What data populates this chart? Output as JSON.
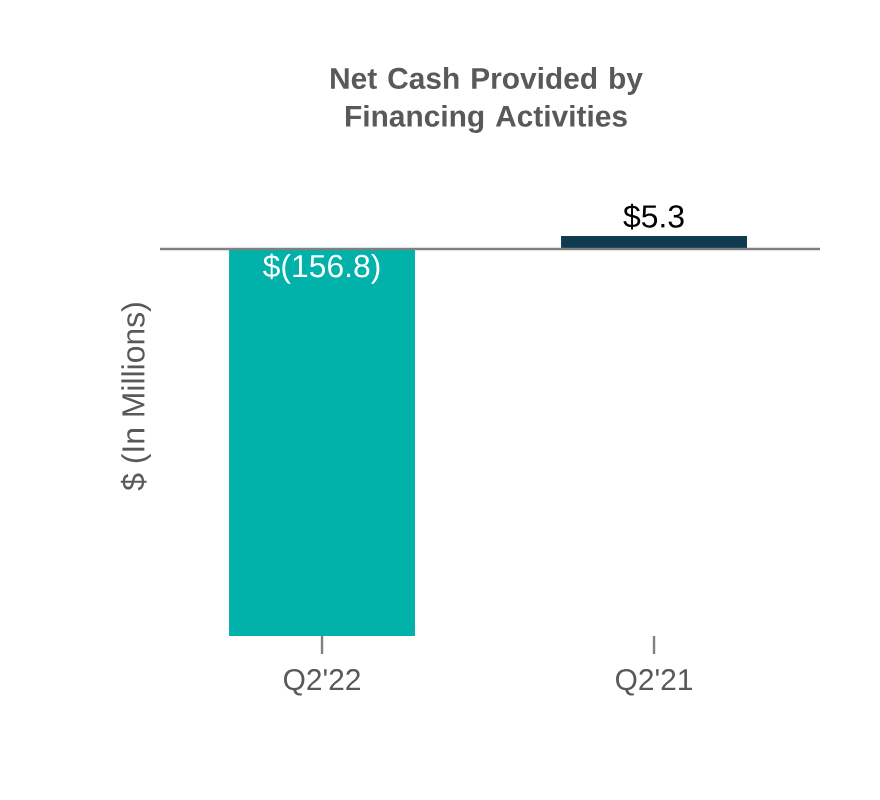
{
  "chart_data": {
    "type": "bar",
    "title": "Net Cash Provided by Financing Activities",
    "ylabel": "$ (In Millions)",
    "categories": [
      "Q2'22",
      "Q2'21"
    ],
    "values": [
      -156.8,
      5.3
    ],
    "colors": [
      "#00b2a9",
      "#0f3a4f"
    ],
    "value_labels": [
      "$(156.8)",
      "$5.3"
    ]
  }
}
